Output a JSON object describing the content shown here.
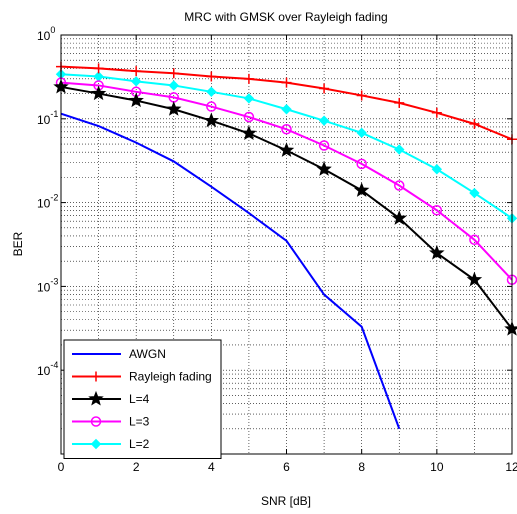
{
  "chart_data": {
    "type": "line",
    "title": "MRC with GMSK over Rayleigh fading",
    "xlabel": "SNR [dB]",
    "ylabel": "BER",
    "xlim": [
      0,
      12
    ],
    "ylim": [
      1e-05,
      1
    ],
    "yscale": "log",
    "grid": true,
    "minor_grid": true,
    "legend_position": "bottom-left",
    "x_ticks": [
      "0",
      "2",
      "4",
      "6",
      "8",
      "10",
      "12"
    ],
    "y_ticks": [
      {
        "base": "10",
        "exp": "0"
      },
      {
        "base": "10",
        "exp": "-1"
      },
      {
        "base": "10",
        "exp": "-2"
      },
      {
        "base": "10",
        "exp": "-3"
      },
      {
        "base": "10",
        "exp": "-4"
      }
    ],
    "series": [
      {
        "name": "AWGN",
        "color": "#0000ff",
        "marker": "none",
        "x": [
          0,
          1,
          2,
          3,
          4,
          5,
          6,
          7,
          8,
          9
        ],
        "y": [
          0.115,
          0.082,
          0.052,
          0.031,
          0.0155,
          0.0075,
          0.0035,
          0.0008,
          0.00033,
          2e-05
        ]
      },
      {
        "name": "Rayleigh fading",
        "color": "#ff0000",
        "marker": "plus",
        "x": [
          0,
          1,
          2,
          3,
          4,
          5,
          6,
          7,
          8,
          9,
          10,
          11,
          12
        ],
        "y": [
          0.42,
          0.4,
          0.37,
          0.35,
          0.32,
          0.3,
          0.27,
          0.23,
          0.19,
          0.155,
          0.118,
          0.087,
          0.057
        ]
      },
      {
        "name": "L=4",
        "color": "#000000",
        "marker": "star",
        "x": [
          0,
          1,
          2,
          3,
          4,
          5,
          6,
          7,
          8,
          9,
          10,
          11,
          12
        ],
        "y": [
          0.24,
          0.2,
          0.165,
          0.13,
          0.095,
          0.067,
          0.042,
          0.025,
          0.014,
          0.0065,
          0.0025,
          0.0012,
          0.00031
        ]
      },
      {
        "name": "L=3",
        "color": "#ff00ff",
        "marker": "circle",
        "x": [
          0,
          1,
          2,
          3,
          4,
          5,
          6,
          7,
          8,
          9,
          10,
          11,
          12
        ],
        "y": [
          0.27,
          0.25,
          0.21,
          0.18,
          0.14,
          0.105,
          0.075,
          0.048,
          0.029,
          0.016,
          0.0081,
          0.0036,
          0.0012
        ]
      },
      {
        "name": "L=2",
        "color": "#00ffff",
        "marker": "diamond",
        "x": [
          0,
          1,
          2,
          3,
          4,
          5,
          6,
          7,
          8,
          9,
          10,
          11,
          12
        ],
        "y": [
          0.34,
          0.32,
          0.28,
          0.25,
          0.21,
          0.175,
          0.13,
          0.095,
          0.068,
          0.043,
          0.025,
          0.013,
          0.0065
        ]
      }
    ]
  }
}
